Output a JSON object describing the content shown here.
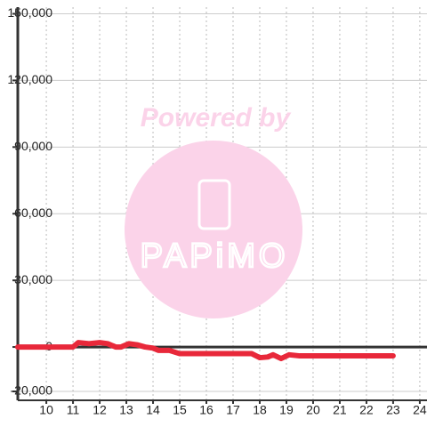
{
  "chart_data": {
    "type": "line",
    "x": [
      8.93,
      10,
      11,
      11.2,
      11.6,
      12,
      12.3,
      12.6,
      12.8,
      13.1,
      13.4,
      13.7,
      14,
      14.2,
      14.6,
      15,
      16,
      17,
      17.7,
      18,
      18.3,
      18.5,
      18.8,
      19.1,
      19.5,
      20,
      21,
      22,
      23
    ],
    "series": [
      {
        "color": "#e8283a",
        "values": [
          0,
          0,
          0,
          2000,
          1500,
          2000,
          1500,
          0,
          0,
          1500,
          1000,
          0,
          -500,
          -1500,
          -1500,
          -3000,
          -3000,
          -3000,
          -3000,
          -4800,
          -4500,
          -3500,
          -5200,
          -3500,
          -4000,
          -4000,
          -4000,
          -4000,
          -4000
        ]
      }
    ],
    "xlim": [
      8.93,
      24.27
    ],
    "xticks": [
      10,
      11,
      12,
      13,
      14,
      15,
      16,
      17,
      18,
      19,
      20,
      21,
      22,
      23,
      24
    ],
    "ylim": [
      -24000,
      153000
    ],
    "yticks": [
      {
        "value": -20000,
        "label": "-20,000"
      },
      0,
      {
        "value": 30000,
        "label": "30,000"
      },
      {
        "value": 60000,
        "label": "60,000"
      },
      {
        "value": 90000,
        "label": "90,000"
      },
      {
        "value": 120000,
        "label": "120,000"
      },
      {
        "value": 150000,
        "label": "150,000"
      }
    ],
    "grid": true,
    "watermark": {
      "text": "Powered by",
      "logo": "PAPiMO"
    }
  }
}
